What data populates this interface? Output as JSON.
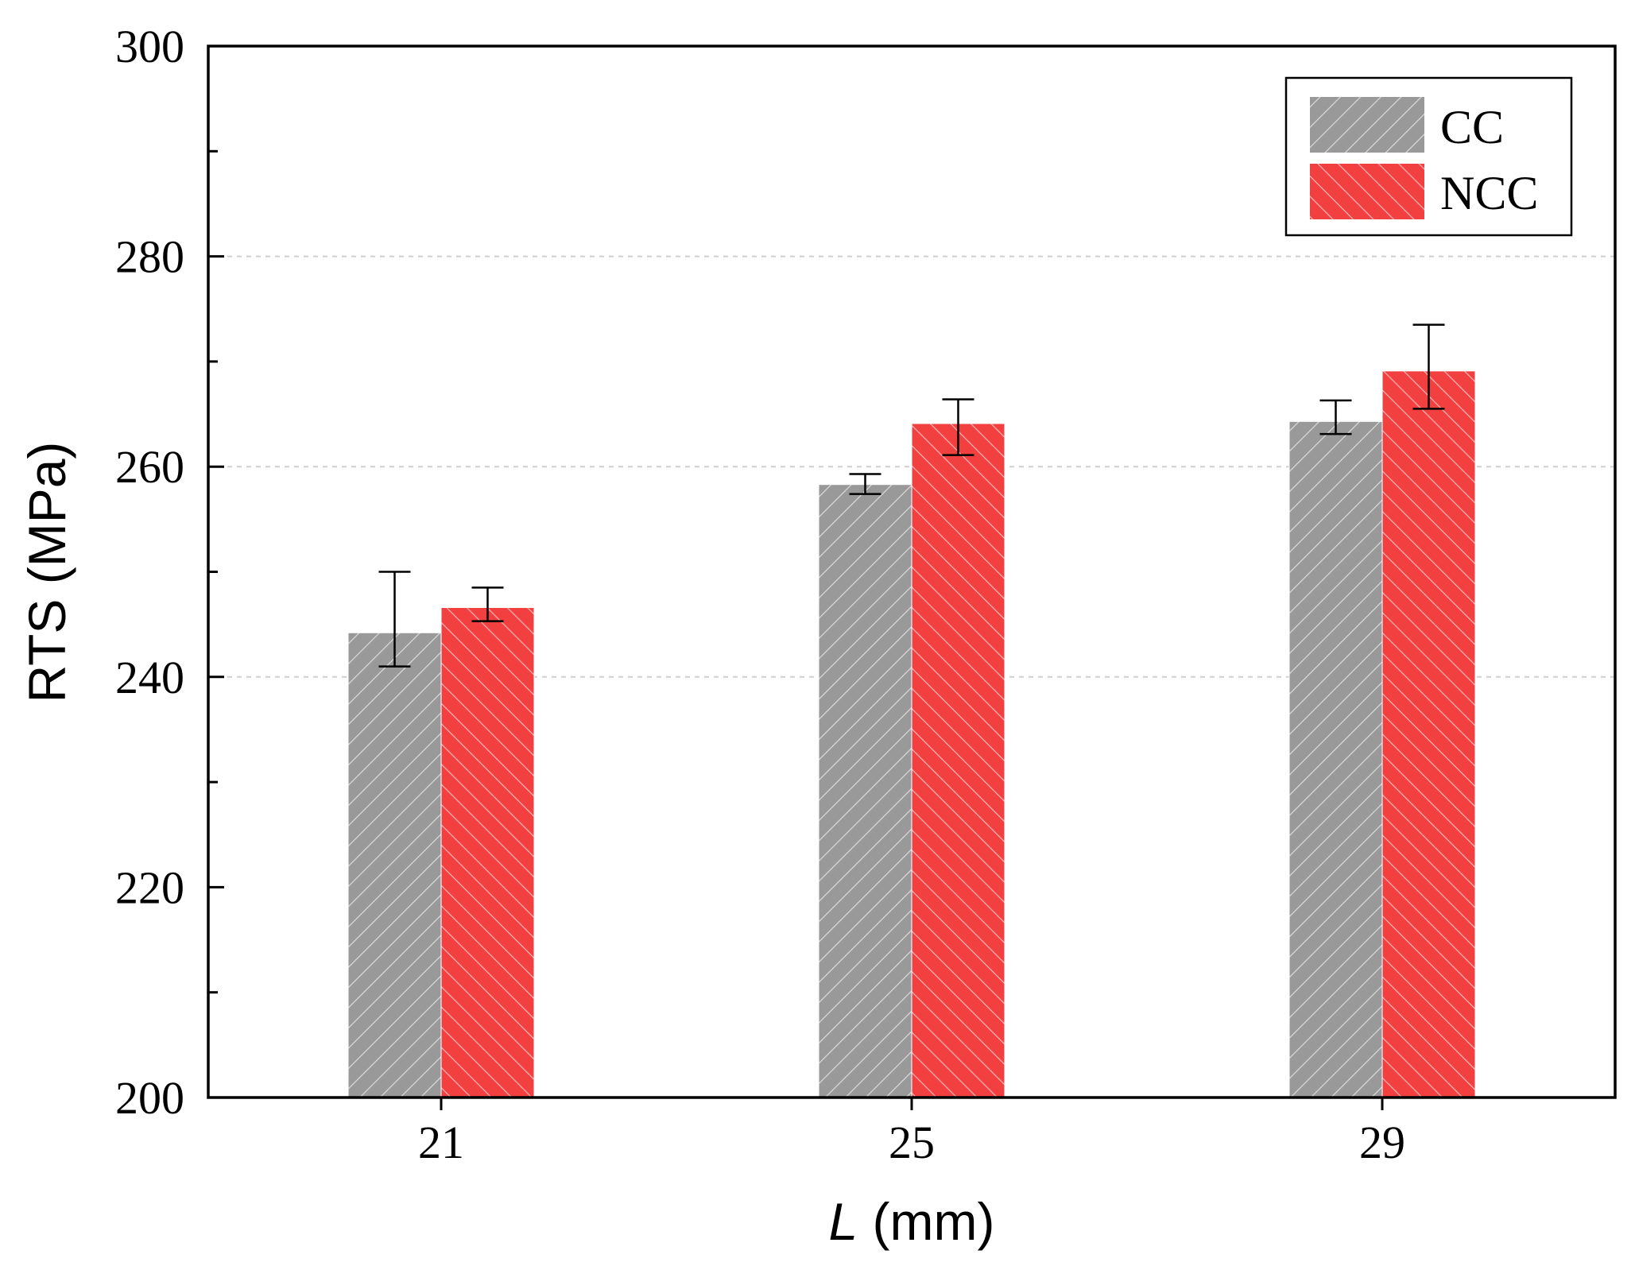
{
  "chart_data": {
    "type": "bar",
    "title": "",
    "xlabel_var": "L",
    "xlabel_unit": " (mm)",
    "ylabel": "RTS (MPa)",
    "ylim": [
      200,
      300
    ],
    "yticks": [
      200,
      220,
      240,
      260,
      280,
      300
    ],
    "grid": "horizontal dashed at 240, 260, 280",
    "legend_position": "top-right",
    "categories": [
      "21",
      "25",
      "29"
    ],
    "series": [
      {
        "name": "CC",
        "color": "#999999",
        "hatch": "forward-diagonal",
        "values": [
          244.2,
          258.3,
          264.3
        ],
        "err_low": [
          241.0,
          257.4,
          263.1
        ],
        "err_high": [
          250.0,
          259.3,
          266.3
        ]
      },
      {
        "name": "NCC",
        "color": "#f23f3f",
        "hatch": "back-diagonal",
        "values": [
          246.6,
          264.1,
          269.1
        ],
        "err_low": [
          245.3,
          261.1,
          265.5
        ],
        "err_high": [
          248.5,
          266.4,
          273.5
        ]
      }
    ]
  }
}
